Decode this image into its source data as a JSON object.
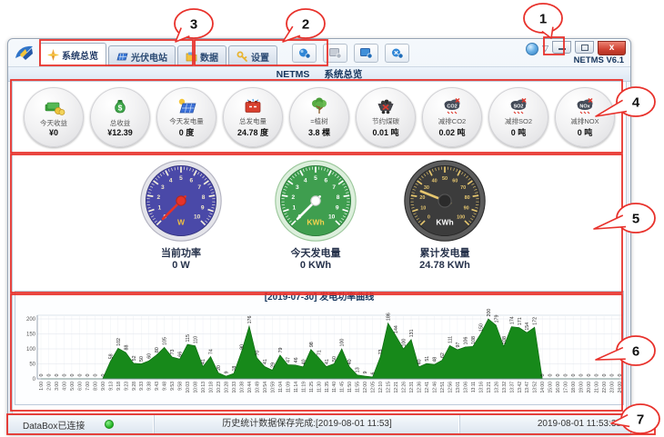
{
  "window": {
    "version": "NETMS V6.1"
  },
  "tabs": [
    {
      "label": "系统总览",
      "icon": "overview-icon",
      "active": true
    },
    {
      "label": "光伏电站",
      "icon": "pv-station-icon",
      "active": false
    },
    {
      "label": "数据",
      "icon": "data-icon",
      "active": false
    },
    {
      "label": "设置",
      "icon": "settings-icon",
      "active": false
    }
  ],
  "toolbar": {
    "buttons": [
      {
        "icon": "connect-icon"
      },
      {
        "icon": "device-offline-icon"
      },
      {
        "icon": "device-online-icon"
      },
      {
        "icon": "disconnect-icon"
      }
    ]
  },
  "breadcrumb": {
    "app": "NETMS",
    "page": "系统总览"
  },
  "stats": [
    {
      "label": "今天收益",
      "value": "¥0",
      "icon": "income-icon"
    },
    {
      "label": "总收益",
      "value": "¥12.39",
      "icon": "money-bag-icon",
      "icon_text": "$"
    },
    {
      "label": "今天发电量",
      "value": "0 度",
      "icon": "solar-panel-icon"
    },
    {
      "label": "总发电量",
      "value": "24.78 度",
      "icon": "battery-icon"
    },
    {
      "label": "=植树",
      "value": "3.8 棵",
      "icon": "tree-icon"
    },
    {
      "label": "节约煤碳",
      "value": "0.01 吨",
      "icon": "coal-cart-icon"
    },
    {
      "label": "减排CO2",
      "value": "0.02 吨",
      "icon": "co2-cloud-icon",
      "icon_text": "CO2"
    },
    {
      "label": "减排SO2",
      "value": "0 吨",
      "icon": "so2-cloud-icon",
      "icon_text": "SO2"
    },
    {
      "label": "减排NOX",
      "value": "0 吨",
      "icon": "nox-cloud-icon",
      "icon_text": "NOx"
    }
  ],
  "gauges": [
    {
      "caption": "当前功率",
      "display": "0 W",
      "unit": "W",
      "value": 0,
      "min": 0,
      "max": 10,
      "step": 1,
      "theme": "blue"
    },
    {
      "caption": "今天发电量",
      "display": "0 KWh",
      "unit": "KWh",
      "value": 0,
      "min": 0,
      "max": 10,
      "step": 1,
      "theme": "green"
    },
    {
      "caption": "累计发电量",
      "display": "24.78 KWh",
      "unit": "KWh",
      "value": 24.78,
      "min": 0,
      "max": 100,
      "step": 10,
      "theme": "dark"
    }
  ],
  "chart_data": {
    "type": "area",
    "title": "[2019-07-30] 发电功率曲线",
    "fill_color": "#17891a",
    "ylim": [
      0,
      200
    ],
    "yticks": [
      0,
      50,
      100,
      150,
      200
    ],
    "x": [
      "1:00",
      "2:00",
      "3:00",
      "4:00",
      "5:00",
      "6:00",
      "7:00",
      "8:00",
      "9:00",
      "9:13",
      "9:18",
      "9:23",
      "9:28",
      "9:33",
      "9:38",
      "9:43",
      "9:48",
      "9:53",
      "9:58",
      "10:03",
      "10:08",
      "10:13",
      "10:18",
      "10:23",
      "10:28",
      "10:33",
      "10:38",
      "10:44",
      "10:49",
      "10:54",
      "10:59",
      "11:04",
      "11:09",
      "11:14",
      "11:19",
      "11:25",
      "11:30",
      "11:35",
      "11:40",
      "11:45",
      "11:50",
      "11:55",
      "12:00",
      "12:05",
      "12:10",
      "12:15",
      "12:21",
      "12:26",
      "12:31",
      "12:36",
      "12:41",
      "12:46",
      "12:51",
      "12:56",
      "13:01",
      "13:06",
      "13:11",
      "13:16",
      "13:21",
      "13:26",
      "13:32",
      "13:37",
      "13:42",
      "13:47",
      "13:52",
      "14:00",
      "15:00",
      "16:00",
      "17:00",
      "18:00",
      "19:00",
      "20:00",
      "21:00",
      "22:00",
      "23:00",
      "24:00"
    ],
    "values": [
      0,
      0,
      0,
      0,
      0,
      0,
      0,
      0,
      0,
      58,
      102,
      88,
      52,
      50,
      60,
      80,
      105,
      73,
      66,
      115,
      110,
      41,
      74,
      20,
      9,
      18,
      90,
      176,
      70,
      41,
      29,
      79,
      47,
      46,
      40,
      98,
      71,
      41,
      50,
      100,
      40,
      13,
      9,
      6,
      73,
      186,
      144,
      100,
      131,
      40,
      51,
      48,
      62,
      111,
      97,
      106,
      108,
      150,
      200,
      179,
      108,
      174,
      171,
      154,
      172,
      0,
      0,
      0,
      0,
      0,
      0,
      0,
      0,
      0,
      0,
      0
    ]
  },
  "statusbar": {
    "left": "DataBox已连接",
    "message": "历史统计数据保存完成:[2019-08-01 11:53]",
    "clock": "2019-08-01 11:53:38"
  },
  "annotations": {
    "labels": [
      "1",
      "2",
      "3",
      "4",
      "5",
      "6",
      "7"
    ]
  }
}
